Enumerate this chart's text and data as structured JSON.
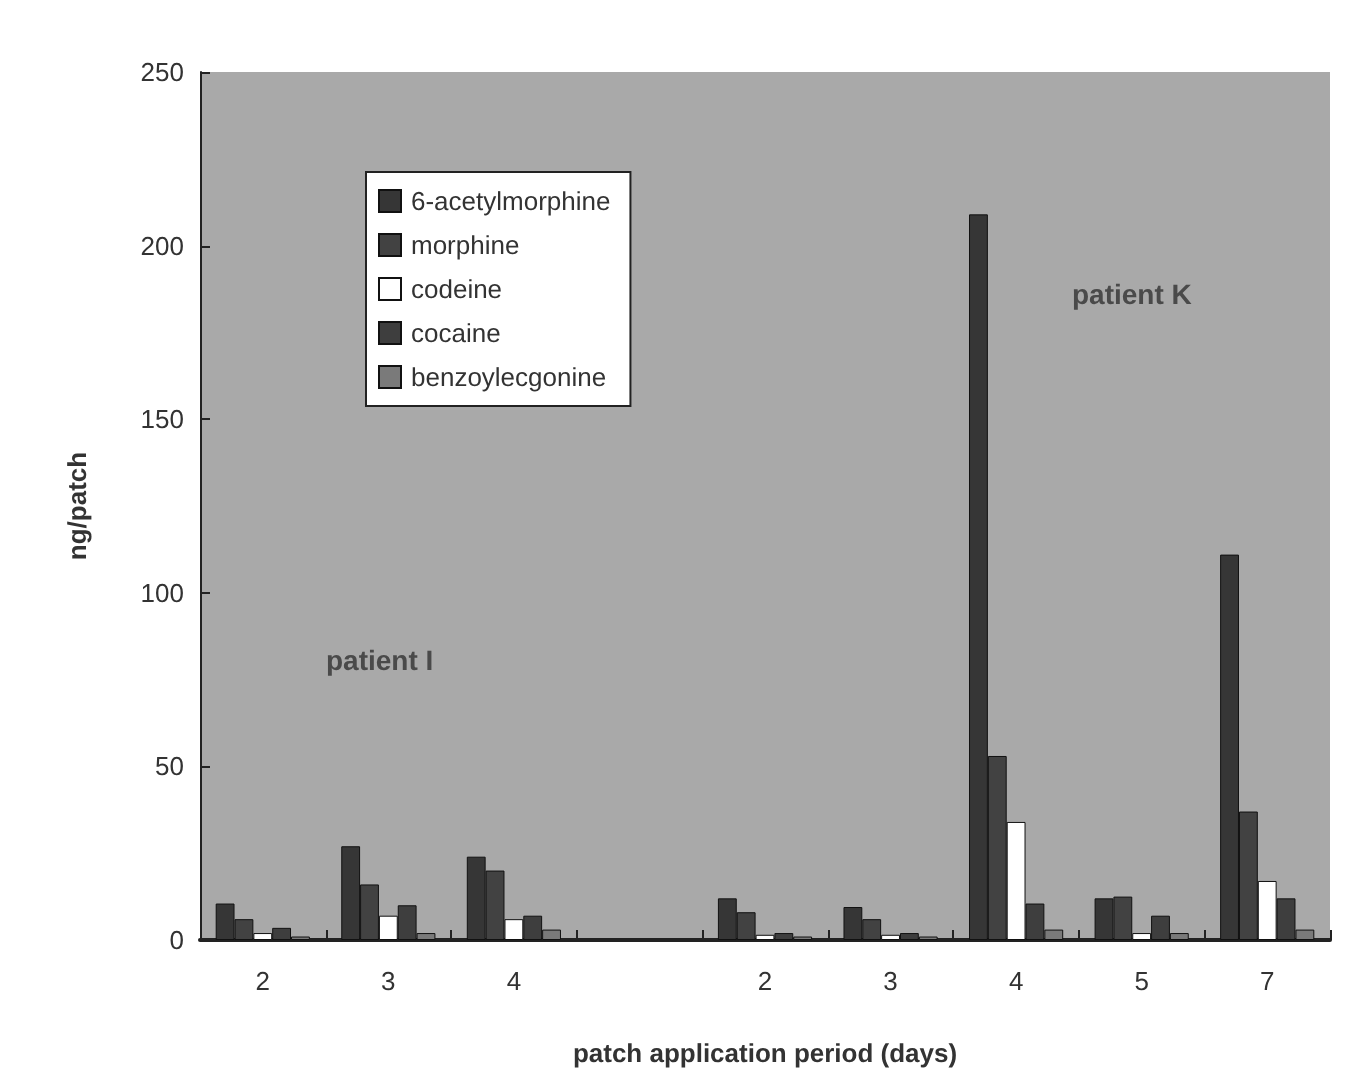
{
  "chart_data": {
    "type": "bar",
    "xlabel": "patch application period (days)",
    "ylabel": "ng/patch",
    "categories": [
      "2",
      "3",
      "4",
      null,
      "2",
      "3",
      "4",
      "5",
      "7"
    ],
    "series": [
      {
        "name": "6-acetylmorphine",
        "color": "#363636",
        "values": [
          10.5,
          27,
          24,
          null,
          12,
          9.5,
          209,
          12,
          111
        ]
      },
      {
        "name": "morphine",
        "color": "#424242",
        "values": [
          6,
          16,
          20,
          null,
          8,
          6,
          53,
          12.5,
          37
        ]
      },
      {
        "name": "codeine",
        "color": "#ffffff",
        "values": [
          2,
          7,
          6,
          null,
          1.5,
          1.5,
          34,
          2,
          17
        ]
      },
      {
        "name": "cocaine",
        "color": "#3e3e3e",
        "values": [
          3.5,
          10,
          7,
          null,
          2,
          2,
          10.5,
          7,
          12
        ]
      },
      {
        "name": "benzoylecgonine",
        "color": "#7a7a7a",
        "values": [
          1,
          2,
          3,
          null,
          1,
          1,
          3,
          2,
          3
        ]
      }
    ],
    "ylim": [
      0,
      250
    ],
    "yticks": [
      0,
      50,
      100,
      150,
      200,
      250
    ],
    "grid": false,
    "legend": "top left",
    "annotations": [
      "patient I",
      "patient K"
    ]
  }
}
